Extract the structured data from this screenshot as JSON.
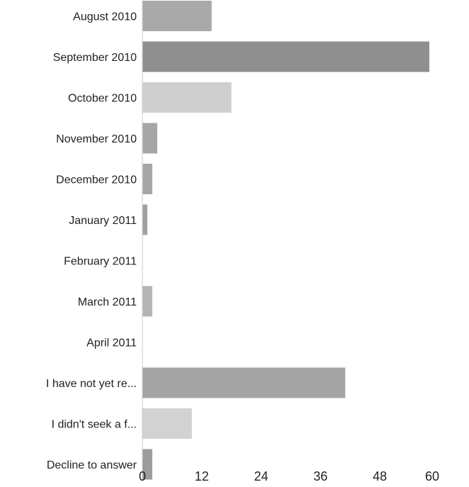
{
  "chart_data": {
    "type": "bar",
    "orientation": "horizontal",
    "categories": [
      "August 2010",
      "September 2010",
      "October 2010",
      "November 2010",
      "December 2010",
      "January 2011",
      "February 2011",
      "March 2011",
      "April 2011",
      "I have not yet re...",
      "I didn't seek a f...",
      "Decline to answer"
    ],
    "values": [
      14,
      58,
      18,
      3,
      2,
      1,
      0,
      2,
      0,
      41,
      10,
      2
    ],
    "bar_colors": [
      "#a9a9a9",
      "#8f8f8f",
      "#cfcfcf",
      "#a6a6a6",
      "#a6a6a6",
      "#a0a0a0",
      "#b0b0b0",
      "#b5b5b5",
      "#b0b0b0",
      "#a4a4a4",
      "#d2d2d2",
      "#9c9c9c"
    ],
    "xticks": [
      "0",
      "12",
      "24",
      "36",
      "48",
      "60"
    ],
    "xlim": [
      0,
      60
    ],
    "grid": false,
    "title": "",
    "xlabel": "",
    "ylabel": ""
  }
}
